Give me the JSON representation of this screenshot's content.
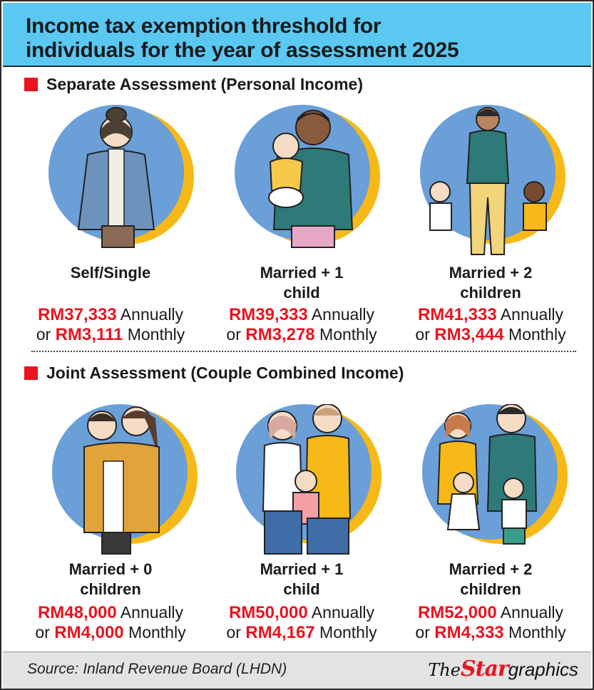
{
  "header": {
    "title_line1": "Income tax exemption threshold for",
    "title_line2": "individuals for the year of assessment 2025"
  },
  "sections": [
    {
      "heading": "Separate Assessment (Personal Income)",
      "cards": [
        {
          "label_line1": "Self/Single",
          "label_line2": "",
          "annual": "RM37,333",
          "annual_suffix": " Annually",
          "monthly_prefix": "or ",
          "monthly": "RM3,111",
          "monthly_suffix": " Monthly"
        },
        {
          "label_line1": "Married + 1",
          "label_line2": "child",
          "annual": "RM39,333",
          "annual_suffix": " Annually",
          "monthly_prefix": "or ",
          "monthly": "RM3,278",
          "monthly_suffix": " Monthly"
        },
        {
          "label_line1": "Married + 2",
          "label_line2": "children",
          "annual": "RM41,333",
          "annual_suffix": " Annually",
          "monthly_prefix": "or ",
          "monthly": "RM3,444",
          "monthly_suffix": " Monthly"
        }
      ]
    },
    {
      "heading": "Joint Assessment (Couple Combined Income)",
      "cards": [
        {
          "label_line1": "Married + 0",
          "label_line2": "children",
          "annual": "RM48,000",
          "annual_suffix": " Annually",
          "monthly_prefix": "or ",
          "monthly": "RM4,000",
          "monthly_suffix": " Monthly"
        },
        {
          "label_line1": "Married + 1",
          "label_line2": "child",
          "annual": "RM50,000",
          "annual_suffix": " Annually",
          "monthly_prefix": "or ",
          "monthly": "RM4,167",
          "monthly_suffix": " Monthly"
        },
        {
          "label_line1": "Married + 2",
          "label_line2": "children",
          "annual": "RM52,000",
          "annual_suffix": " Annually",
          "monthly_prefix": "or ",
          "monthly": "RM4,333",
          "monthly_suffix": " Monthly"
        }
      ]
    }
  ],
  "footer": {
    "source": "Source: Inland Revenue Board (LHDN)",
    "logo_the": "The",
    "logo_star": "Star",
    "logo_graphics": "graphics"
  },
  "colors": {
    "header_bg": "#5bc8f2",
    "accent_red": "#e8141f",
    "circle_blue": "#6b9fd8",
    "circle_yellow": "#f6b917"
  },
  "illustrations": [
    "woman-denim-jacket-icon",
    "father-holding-baby-icon",
    "mother-two-children-icon",
    "couple-hugging-icon",
    "couple-one-child-icon",
    "couple-two-children-icon"
  ]
}
